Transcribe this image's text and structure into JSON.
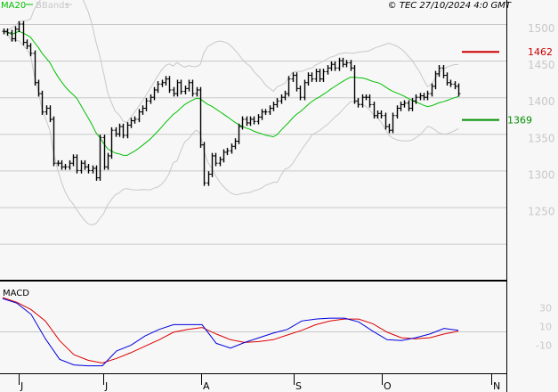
{
  "header": {
    "copyright": "© TEC 27/10/2024 4:0 GMT",
    "legend": [
      {
        "name": "MA20",
        "color": "#00c000"
      },
      {
        "name": "BBands",
        "color": "#c8c8c8"
      }
    ]
  },
  "chart_data": [
    {
      "type": "ohlc-bar",
      "ylim": [
        1180,
        1530
      ],
      "yticks": [
        1500,
        1450,
        1400,
        1350,
        1300,
        1250
      ],
      "grid": true,
      "legend": "top-left",
      "x_tick_labels": [
        "J",
        "J",
        "A",
        "S",
        "O",
        "N"
      ],
      "closes": [
        1490,
        1488,
        1480,
        1493,
        1500,
        1475,
        1470,
        1460,
        1420,
        1405,
        1380,
        1385,
        1370,
        1310,
        1310,
        1305,
        1305,
        1310,
        1318,
        1300,
        1310,
        1305,
        1300,
        1303,
        1290,
        1345,
        1305,
        1320,
        1355,
        1350,
        1360,
        1348,
        1362,
        1368,
        1370,
        1380,
        1385,
        1395,
        1400,
        1410,
        1418,
        1420,
        1425,
        1410,
        1405,
        1420,
        1408,
        1412,
        1420,
        1405,
        1410,
        1335,
        1283,
        1295,
        1320,
        1310,
        1315,
        1325,
        1327,
        1333,
        1340,
        1360,
        1370,
        1365,
        1370,
        1367,
        1373,
        1380,
        1380,
        1385,
        1390,
        1395,
        1400,
        1405,
        1425,
        1430,
        1412,
        1400,
        1420,
        1430,
        1425,
        1435,
        1425,
        1435,
        1440,
        1445,
        1440,
        1450,
        1445,
        1447,
        1440,
        1395,
        1390,
        1400,
        1400,
        1390,
        1375,
        1378,
        1375,
        1360,
        1355,
        1375,
        1385,
        1390,
        1392,
        1385,
        1395,
        1400,
        1402,
        1400,
        1405,
        1415,
        1432,
        1440,
        1430,
        1420,
        1418,
        1415,
        1405
      ],
      "overlays": [
        "MA20",
        "BBands"
      ],
      "levels": [
        {
          "label": "1462",
          "value": 1462,
          "color": "#cc0000"
        },
        {
          "label": "1369",
          "value": 1369,
          "color": "#009000"
        }
      ]
    },
    {
      "type": "line",
      "title": "MACD",
      "yticks": [
        30,
        10,
        -10
      ],
      "series": [
        {
          "color": "#0000dd",
          "values": [
            39,
            34,
            22,
            -4,
            -26,
            -32,
            -33,
            -33,
            -17,
            -11,
            -1,
            6,
            11,
            11,
            11,
            -9,
            -14,
            -8,
            -3,
            2,
            6,
            15,
            17,
            18,
            18,
            14,
            4,
            -5,
            -6,
            -3,
            1,
            7,
            5
          ]
        },
        {
          "color": "#dd0000",
          "values": [
            40,
            35,
            27,
            15,
            -6,
            -21,
            -27,
            -30,
            -25,
            -19,
            -12,
            -5,
            3,
            6,
            8,
            1,
            -5,
            -8,
            -7,
            -5,
            0,
            5,
            11,
            15,
            17,
            17,
            12,
            3,
            -3,
            -4,
            -3,
            1,
            4
          ]
        }
      ]
    }
  ]
}
